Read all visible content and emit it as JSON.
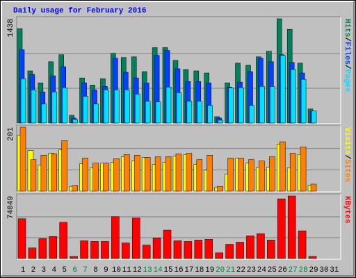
{
  "chart_data": {
    "type": "bar",
    "title": "Daily usage for February 2016",
    "title_color": "#0000ff",
    "legend_separator": "/",
    "categories": [
      "1",
      "2",
      "3",
      "4",
      "5",
      "6",
      "7",
      "8",
      "9",
      "10",
      "11",
      "12",
      "13",
      "14",
      "15",
      "16",
      "17",
      "18",
      "19",
      "20",
      "21",
      "22",
      "23",
      "24",
      "25",
      "26",
      "27",
      "28",
      "29",
      "30",
      "31"
    ],
    "category_colors": [
      "#000000",
      "#000000",
      "#000000",
      "#000000",
      "#000000",
      "#008040",
      "#008040",
      "#000000",
      "#000000",
      "#000000",
      "#000000",
      "#000000",
      "#008040",
      "#008040",
      "#000000",
      "#000000",
      "#000000",
      "#000000",
      "#000000",
      "#008040",
      "#008040",
      "#000000",
      "#000000",
      "#000000",
      "#000000",
      "#000000",
      "#008040",
      "#008040",
      "#000000",
      "#000000",
      "#000000"
    ],
    "panels": [
      {
        "ylim": [
          0,
          1438
        ],
        "yticks": [
          1438
        ],
        "series": [
          {
            "name": "Hits",
            "color": "#00805c",
            "values": [
              1302,
              719,
              554,
              845,
              942,
              107,
              622,
              525,
              612,
              962,
              904,
              913,
              709,
              1040,
              1040,
              865,
              738,
              719,
              690,
              87,
              554,
              826,
              797,
              913,
              991,
              1438,
              1292,
              826,
              194,
              null,
              null
            ]
          },
          {
            "name": "Files",
            "color": "#0040ff",
            "values": [
              1010,
              670,
              428,
              651,
              777,
              68,
              554,
              457,
              505,
              894,
              700,
              622,
              554,
              933,
              1001,
              748,
              573,
              573,
              554,
              68,
              496,
              564,
              709,
              894,
              845,
              942,
              836,
              690,
              165,
              null,
              null
            ]
          },
          {
            "name": "Pages",
            "color": "#00e0ff",
            "values": [
              612,
              457,
              262,
              428,
              486,
              49,
              369,
              262,
              457,
              457,
              457,
              398,
              301,
              291,
              496,
              418,
              301,
              301,
              243,
              39,
              486,
              486,
              243,
              505,
              505,
              933,
              738,
              602,
              165,
              null,
              null
            ]
          }
        ]
      },
      {
        "ylim": [
          0,
          201
        ],
        "yticks": [
          201
        ],
        "series": [
          {
            "name": "Visits",
            "color": "#ffff00",
            "values": [
              175,
              128,
              82,
              119,
              130,
              15,
              86,
              73,
              88,
              91,
              108,
              95,
              106,
              84,
              91,
              110,
              115,
              84,
              66,
              11,
              53,
              104,
              88,
              75,
              75,
              148,
              73,
              115,
              18,
              null,
              null
            ]
          },
          {
            "name": "Sites",
            "color": "#ff8000",
            "values": [
              201,
              99,
              113,
              117,
              159,
              18,
              104,
              88,
              88,
              102,
              115,
              113,
              106,
              108,
              108,
              117,
              119,
              99,
              113,
              15,
              104,
              104,
              99,
              95,
              108,
              155,
              119,
              139,
              22,
              null,
              null
            ]
          }
        ]
      },
      {
        "ylim": [
          0,
          74049
        ],
        "yticks": [
          74049
        ],
        "series": [
          {
            "name": "KBytes",
            "color": "#ff0000",
            "values": [
              47124,
              12622,
              23562,
              26086,
              42915,
              2524,
              21037,
              20196,
              20196,
              49648,
              18513,
              47965,
              15988,
              24403,
              33659,
              21037,
              20196,
              21878,
              22720,
              6732,
              16829,
              19354,
              26927,
              29452,
              21878,
              70685,
              74049,
              32817,
              2524,
              null,
              null
            ]
          }
        ]
      }
    ]
  }
}
